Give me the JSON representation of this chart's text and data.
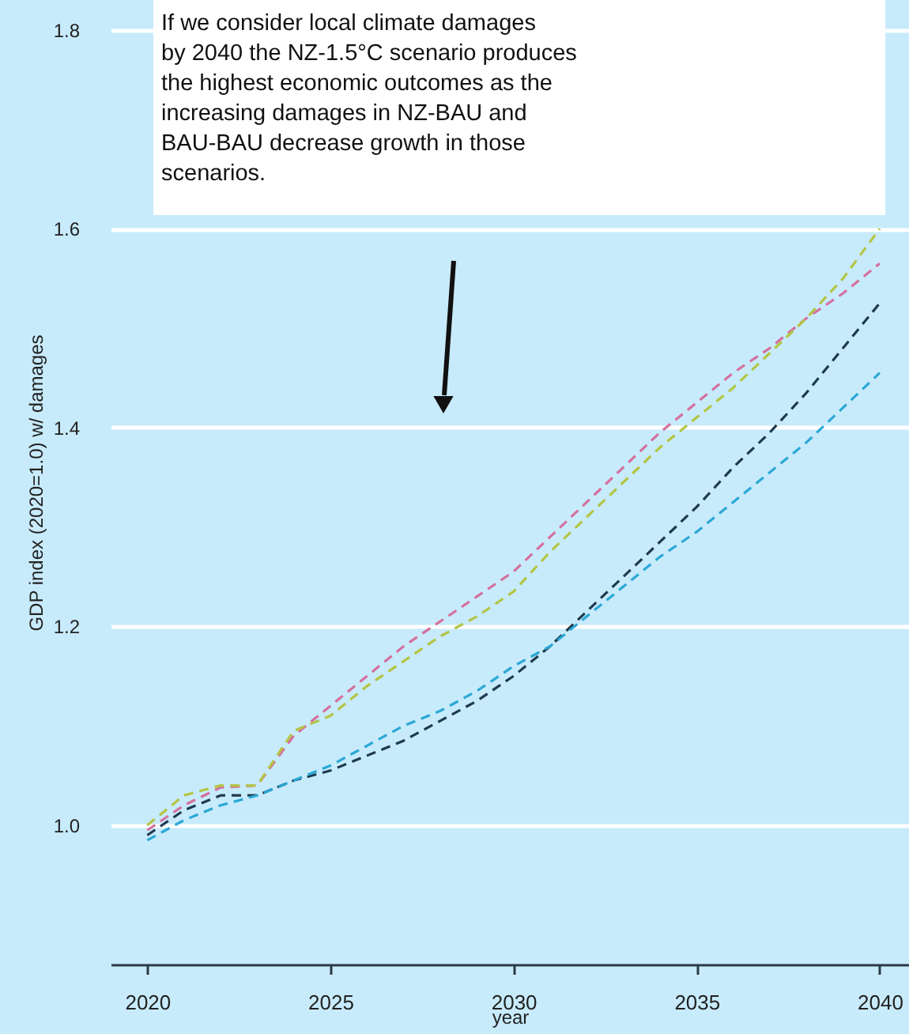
{
  "chart_data": {
    "type": "line",
    "xlabel": "year",
    "ylabel": "GDP index (2020=1.0) w/ damages",
    "x": [
      2020,
      2021,
      2022,
      2023,
      2024,
      2025,
      2026,
      2027,
      2028,
      2029,
      2030,
      2031,
      2032,
      2033,
      2034,
      2035,
      2036,
      2037,
      2038,
      2039,
      2040
    ],
    "series": [
      {
        "color": "#d4709f",
        "values": [
          0.995,
          1.02,
          1.038,
          1.04,
          1.09,
          1.12,
          1.15,
          1.18,
          1.205,
          1.23,
          1.255,
          1.29,
          1.325,
          1.36,
          1.395,
          1.425,
          1.455,
          1.48,
          1.51,
          1.535,
          1.565
        ]
      },
      {
        "color": "#b3c545",
        "values": [
          1.0,
          1.03,
          1.04,
          1.04,
          1.095,
          1.11,
          1.14,
          1.165,
          1.19,
          1.21,
          1.235,
          1.275,
          1.31,
          1.345,
          1.38,
          1.41,
          1.44,
          1.475,
          1.51,
          1.55,
          1.6
        ]
      },
      {
        "color": "#1f3a4f",
        "values": [
          0.99,
          1.015,
          1.03,
          1.03,
          1.045,
          1.055,
          1.07,
          1.085,
          1.105,
          1.125,
          1.15,
          1.18,
          1.215,
          1.25,
          1.285,
          1.32,
          1.36,
          1.395,
          1.435,
          1.48,
          1.525
        ]
      },
      {
        "color": "#2ba8d6",
        "values": [
          0.985,
          1.005,
          1.02,
          1.03,
          1.045,
          1.06,
          1.08,
          1.1,
          1.115,
          1.135,
          1.16,
          1.18,
          1.21,
          1.24,
          1.27,
          1.295,
          1.325,
          1.355,
          1.385,
          1.42,
          1.455
        ]
      }
    ],
    "xlim": [
      2019,
      2040.8
    ],
    "xticks": [
      2020,
      2025,
      2030,
      2035,
      2040
    ],
    "ylim": [
      0.86,
      1.83
    ],
    "yticks": [
      {
        "value": 1.0,
        "label": "1.0"
      },
      1.2,
      1.4,
      1.6,
      1.8
    ],
    "grid": "y",
    "line_style": "dashed",
    "annotations": [
      "If we consider local climate damages by 2040 the NZ-1.5°C scenario produces the highest economic outcomes as the increasing damages in NZ-BAU and BAU-BAU decrease growth in those scenarios."
    ]
  }
}
